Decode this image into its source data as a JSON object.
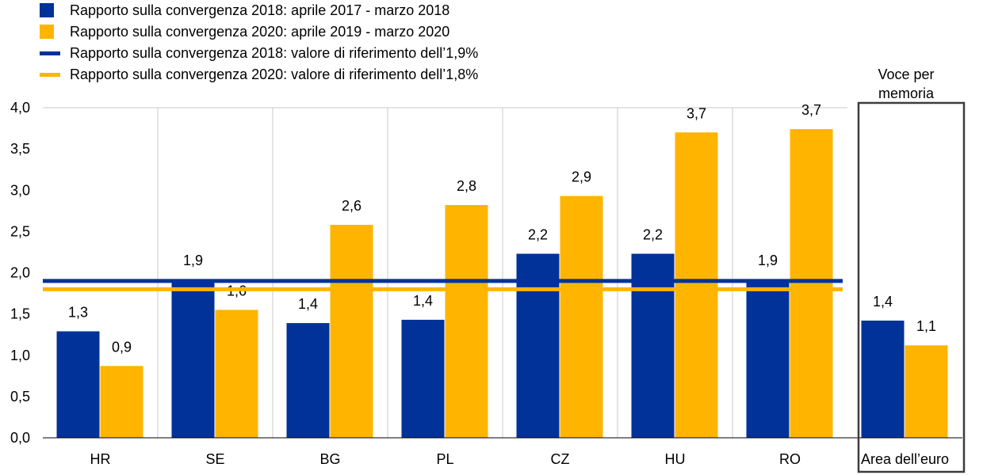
{
  "colors": {
    "series_2018": "#003299",
    "series_2020": "#FFB400",
    "grid": "#c8c8c8",
    "memo_box": "#3c3c3c"
  },
  "legend": [
    {
      "label": "Rapporto sulla convergenza 2018: aprile 2017 - marzo 2018",
      "kind": "box",
      "color": "#003299"
    },
    {
      "label": "Rapporto sulla convergenza 2020: aprile 2019 - marzo 2020",
      "kind": "box",
      "color": "#FFB400"
    },
    {
      "label": "Rapporto sulla convergenza 2018: valore di riferimento dell’1,9%",
      "kind": "line",
      "color": "#003299"
    },
    {
      "label": "Rapporto sulla convergenza 2020: valore di riferimento dell’1,8%",
      "kind": "line",
      "color": "#FFB400"
    }
  ],
  "memo": {
    "title": "Voce per memoria"
  },
  "chart_data": {
    "type": "bar",
    "categories": [
      "HR",
      "SE",
      "BG",
      "PL",
      "CZ",
      "HU",
      "RO",
      "Area dell’euro"
    ],
    "series": [
      {
        "name": "Rapporto sulla convergenza 2018: aprile 2017 - marzo 2018",
        "values": [
          1.29,
          1.92,
          1.39,
          1.43,
          2.23,
          2.23,
          1.92,
          1.42
        ],
        "labels": [
          "1,3",
          "1,9",
          "1,4",
          "1,4",
          "2,2",
          "2,2",
          "1,9",
          "1,4"
        ],
        "color": "#003299"
      },
      {
        "name": "Rapporto sulla convergenza 2020: aprile 2019 - marzo 2020",
        "values": [
          0.87,
          1.55,
          2.58,
          2.82,
          2.93,
          3.7,
          3.74,
          1.12
        ],
        "labels": [
          "0,9",
          "1,6",
          "2,6",
          "2,8",
          "2,9",
          "3,7",
          "3,7",
          "1,1"
        ],
        "color": "#FFB400"
      }
    ],
    "reference_lines": [
      {
        "name": "Rapporto sulla convergenza 2018: valore di riferimento dell’1,9%",
        "value": 1.9,
        "color": "#003299"
      },
      {
        "name": "Rapporto sulla convergenza 2020: valore di riferimento dell’1,8%",
        "value": 1.8,
        "color": "#FFB400"
      }
    ],
    "ylim": [
      0,
      4.0
    ],
    "yticks": [
      "0,0",
      "0,5",
      "1,0",
      "1,5",
      "2,0",
      "2,5",
      "3,0",
      "3,5",
      "4,0"
    ],
    "grid": "vertical",
    "legend_position": "top-left",
    "title": "",
    "xlabel": "",
    "ylabel": ""
  }
}
